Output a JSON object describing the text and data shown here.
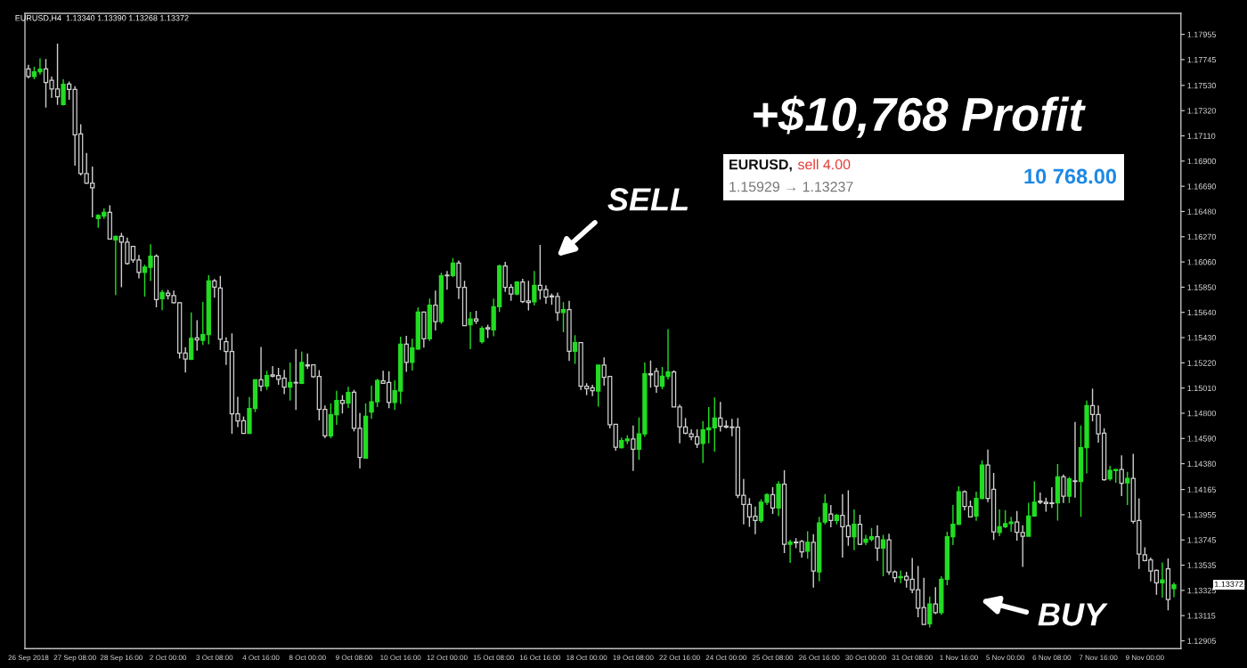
{
  "chart_data": {
    "type": "candlestick",
    "title": "EURUSD,H4  1.13340 1.13390 1.13268 1.13372",
    "categories": [
      "26 Sep 2018",
      null,
      null,
      null,
      null,
      null,
      null,
      null,
      "27 Sep 08:00",
      null,
      null,
      null,
      null,
      null,
      null,
      null,
      "28 Sep 16:00",
      null,
      null,
      null,
      null,
      null,
      null,
      null,
      "2 Oct 00:00",
      null,
      null,
      null,
      null,
      null,
      null,
      null,
      "3 Oct 08:00",
      null,
      null,
      null,
      null,
      null,
      null,
      null,
      "4 Oct 16:00",
      null,
      null,
      null,
      null,
      null,
      null,
      null,
      "8 Oct 00:00",
      null,
      null,
      null,
      null,
      null,
      null,
      null,
      "9 Oct 08:00",
      null,
      null,
      null,
      null,
      null,
      null,
      null,
      "10 Oct 16:00",
      null,
      null,
      null,
      null,
      null,
      null,
      null,
      "12 Oct 00:00",
      null,
      null,
      null,
      null,
      null,
      null,
      null,
      "15 Oct 08:00",
      null,
      null,
      null,
      null,
      null,
      null,
      null,
      "16 Oct 16:00",
      null,
      null,
      null,
      null,
      null,
      null,
      null,
      "18 Oct 00:00",
      null,
      null,
      null,
      null,
      null,
      null,
      null,
      "19 Oct 08:00",
      null,
      null,
      null,
      null,
      null,
      null,
      null,
      "22 Oct 16:00",
      null,
      null,
      null,
      null,
      null,
      null,
      null,
      "24 Oct 00:00",
      null,
      null,
      null,
      null,
      null,
      null,
      null,
      "25 Oct 08:00",
      null,
      null,
      null,
      null,
      null,
      null,
      null,
      "26 Oct 16:00",
      null,
      null,
      null,
      null,
      null,
      null,
      null,
      "30 Oct 00:00",
      null,
      null,
      null,
      null,
      null,
      null,
      null,
      "31 Oct 08:00",
      null,
      null,
      null,
      null,
      null,
      null,
      null,
      "1 Nov 16:00",
      null,
      null,
      null,
      null,
      null,
      null,
      null,
      "5 Nov 00:00",
      null,
      null,
      null,
      null,
      null,
      null,
      null,
      "6 Nov 08:00",
      null,
      null,
      null,
      null,
      null,
      null,
      null,
      "7 Nov 16:00",
      null,
      null,
      null,
      null,
      null,
      null,
      null,
      "9 Nov 00:00",
      null,
      null,
      null,
      null,
      null
    ],
    "ohlc": [
      [
        1.17668,
        1.17701,
        1.17588,
        1.17604
      ],
      [
        1.17604,
        1.17685,
        1.17581,
        1.17643
      ],
      [
        1.17643,
        1.17756,
        1.1762,
        1.17665
      ],
      [
        1.17668,
        1.17749,
        1.17345,
        1.17555
      ],
      [
        1.17572,
        1.17604,
        1.17426,
        1.17501
      ],
      [
        1.17501,
        1.17878,
        1.17368,
        1.17436
      ],
      [
        1.17371,
        1.17581,
        1.17362,
        1.17539
      ],
      [
        1.17542,
        1.17562,
        1.1741,
        1.17497
      ],
      [
        1.17497,
        1.17523,
        1.16861,
        1.17119
      ],
      [
        1.17126,
        1.17207,
        1.1678,
        1.16796
      ],
      [
        1.16796,
        1.16968,
        1.16709,
        1.16716
      ],
      [
        1.16716,
        1.16855,
        1.16431,
        1.16677
      ],
      [
        1.16422,
        1.16457,
        1.16344,
        1.16448
      ],
      [
        1.16441,
        1.16506,
        1.16418,
        1.16473
      ],
      [
        1.16473,
        1.16532,
        1.16247,
        1.1625
      ],
      [
        1.16244,
        1.1628,
        1.15785,
        1.16273
      ],
      [
        1.16273,
        1.16302,
        1.1585,
        1.16225
      ],
      [
        1.16225,
        1.16263,
        1.16037,
        1.16047
      ],
      [
        1.16189,
        1.16189,
        1.16053,
        1.16076
      ],
      [
        1.16076,
        1.16118,
        1.15924,
        1.15973
      ],
      [
        1.15973,
        1.16037,
        1.15772,
        1.16018
      ],
      [
        1.16015,
        1.16208,
        1.15902,
        1.16108
      ],
      [
        1.16108,
        1.16124,
        1.15682,
        1.15747
      ],
      [
        1.15753,
        1.15827,
        1.15659,
        1.15805
      ],
      [
        1.15801,
        1.15827,
        1.15747,
        1.15779
      ],
      [
        1.15779,
        1.15821,
        1.15714,
        1.15721
      ],
      [
        1.15721,
        1.15727,
        1.15256,
        1.15301
      ],
      [
        1.15301,
        1.15349,
        1.15139,
        1.15252
      ],
      [
        1.15249,
        1.1564,
        1.15243,
        1.15424
      ],
      [
        1.15427,
        1.15575,
        1.1532,
        1.15411
      ],
      [
        1.15407,
        1.15727,
        1.15369,
        1.15456
      ],
      [
        1.15456,
        1.1595,
        1.15375,
        1.15902
      ],
      [
        1.15902,
        1.15918,
        1.15763,
        1.1585
      ],
      [
        1.15843,
        1.15944,
        1.15327,
        1.15417
      ],
      [
        1.15396,
        1.15433,
        1.15203,
        1.15314
      ],
      [
        1.15314,
        1.15465,
        1.14629,
        1.14795
      ],
      [
        1.14795,
        1.14938,
        1.14684,
        1.14736
      ],
      [
        1.14738,
        1.14773,
        1.14629,
        1.14632
      ],
      [
        1.14632,
        1.14936,
        1.14629,
        1.1484
      ],
      [
        1.1484,
        1.15079,
        1.1481,
        1.15079
      ],
      [
        1.15079,
        1.15352,
        1.14983,
        1.15025
      ],
      [
        1.15025,
        1.15154,
        1.14995,
        1.15114
      ],
      [
        1.15119,
        1.15193,
        1.15099,
        1.15109
      ],
      [
        1.15114,
        1.15178,
        1.15037,
        1.15082
      ],
      [
        1.15092,
        1.15161,
        1.14959,
        1.15017
      ],
      [
        1.15017,
        1.15223,
        1.14906,
        1.15057
      ],
      [
        1.15057,
        1.15334,
        1.14827,
        1.15052
      ],
      [
        1.1505,
        1.15314,
        1.15042,
        1.15223
      ],
      [
        1.15203,
        1.15297,
        1.15168,
        1.15193
      ],
      [
        1.15203,
        1.15203,
        1.15094,
        1.15104
      ],
      [
        1.15107,
        1.15159,
        1.14741,
        1.14832
      ],
      [
        1.14832,
        1.14864,
        1.14592,
        1.14612
      ],
      [
        1.14612,
        1.14882,
        1.14592,
        1.14788
      ],
      [
        1.14788,
        1.14988,
        1.14704,
        1.14906
      ],
      [
        1.14906,
        1.14951,
        1.14798,
        1.14882
      ],
      [
        1.14884,
        1.1502,
        1.14842,
        1.14973
      ],
      [
        1.14976,
        1.14995,
        1.14649,
        1.14674
      ],
      [
        1.14674,
        1.14802,
        1.1434,
        1.14432
      ],
      [
        1.14427,
        1.14882,
        1.14427,
        1.14775
      ],
      [
        1.1481,
        1.1503,
        1.14753,
        1.14896
      ],
      [
        1.14896,
        1.15087,
        1.14852,
        1.15074
      ],
      [
        1.1507,
        1.15154,
        1.15045,
        1.1505
      ],
      [
        1.15057,
        1.15149,
        1.14842,
        1.14889
      ],
      [
        1.14889,
        1.15074,
        1.14827,
        1.14988
      ],
      [
        1.14985,
        1.15438,
        1.14877,
        1.15376
      ],
      [
        1.15376,
        1.15445,
        1.15144,
        1.15223
      ],
      [
        1.15223,
        1.15421,
        1.15156,
        1.15344
      ],
      [
        1.15334,
        1.1568,
        1.15329,
        1.15643
      ],
      [
        1.15643,
        1.15648,
        1.15347,
        1.15421
      ],
      [
        1.15421,
        1.15755,
        1.15401,
        1.157
      ],
      [
        1.157,
        1.15821,
        1.1549,
        1.15562
      ],
      [
        1.15562,
        1.1597,
        1.15544,
        1.15945
      ],
      [
        1.1595,
        1.15985,
        1.15829,
        1.15945
      ],
      [
        1.15947,
        1.16093,
        1.15933,
        1.16051
      ],
      [
        1.16051,
        1.16071,
        1.15752,
        1.15849
      ],
      [
        1.15849,
        1.15903,
        1.1553,
        1.1553
      ],
      [
        1.15537,
        1.15643,
        1.15334,
        1.15586
      ],
      [
        1.15586,
        1.15653,
        1.15544,
        1.15569
      ],
      [
        1.15396,
        1.15525,
        1.15381,
        1.15507
      ],
      [
        1.15512,
        1.15537,
        1.15426,
        1.15502
      ],
      [
        1.15495,
        1.15755,
        1.15441,
        1.15688
      ],
      [
        1.15688,
        1.16039,
        1.15643,
        1.16027
      ],
      [
        1.16027,
        1.16061,
        1.15811,
        1.15849
      ],
      [
        1.15849,
        1.15876,
        1.15737,
        1.15792
      ],
      [
        1.15792,
        1.159,
        1.15782,
        1.15893
      ],
      [
        1.15893,
        1.1592,
        1.15718,
        1.1573
      ],
      [
        1.15735,
        1.15903,
        1.15656,
        1.15722
      ],
      [
        1.15727,
        1.15985,
        1.15698,
        1.15866
      ],
      [
        1.15866,
        1.16202,
        1.15747,
        1.15826
      ],
      [
        1.15829,
        1.15866,
        1.15713,
        1.15767
      ],
      [
        1.15777,
        1.15797,
        1.15703,
        1.15769
      ],
      [
        1.15772,
        1.15804,
        1.15569,
        1.15638
      ],
      [
        1.15638,
        1.15725,
        1.15475,
        1.15663
      ],
      [
        1.15663,
        1.15737,
        1.15235,
        1.15317
      ],
      [
        1.15317,
        1.1545,
        1.15211,
        1.15389
      ],
      [
        1.15389,
        1.15391,
        1.14993,
        1.15025
      ],
      [
        1.15025,
        1.1505,
        1.14951,
        1.15005
      ],
      [
        1.15013,
        1.15037,
        1.14943,
        1.14988
      ],
      [
        1.14985,
        1.15201,
        1.14855,
        1.15201
      ],
      [
        1.15201,
        1.15265,
        1.1503,
        1.15099
      ],
      [
        1.15107,
        1.15107,
        1.14674,
        1.14704
      ],
      [
        1.14708,
        1.14708,
        1.14488,
        1.14518
      ],
      [
        1.14513,
        1.14597,
        1.14506,
        1.14572
      ],
      [
        1.1457,
        1.14617,
        1.14543,
        1.14585
      ],
      [
        1.14585,
        1.14698,
        1.1432,
        1.14501
      ],
      [
        1.14501,
        1.14765,
        1.14412,
        1.14629
      ],
      [
        1.14629,
        1.15223,
        1.14604,
        1.15129
      ],
      [
        1.15129,
        1.1524,
        1.15013,
        1.15119
      ],
      [
        1.15149,
        1.15178,
        1.14971,
        1.15025
      ],
      [
        1.15025,
        1.15186,
        1.15,
        1.15109
      ],
      [
        1.15107,
        1.155,
        1.15082,
        1.15144
      ],
      [
        1.15144,
        1.15158,
        1.14852,
        1.14852
      ],
      [
        1.14852,
        1.14872,
        1.1455,
        1.14686
      ],
      [
        1.14686,
        1.1476,
        1.14624,
        1.14634
      ],
      [
        1.14629,
        1.14666,
        1.14575,
        1.14605
      ],
      [
        1.14605,
        1.14666,
        1.14511,
        1.14543
      ],
      [
        1.14548,
        1.14735,
        1.14387,
        1.14661
      ],
      [
        1.14661,
        1.14852,
        1.1455,
        1.14679
      ],
      [
        1.14679,
        1.14931,
        1.14481,
        1.1476
      ],
      [
        1.1476,
        1.14894,
        1.14647,
        1.14691
      ],
      [
        1.14694,
        1.14741,
        1.14674,
        1.14684
      ],
      [
        1.14686,
        1.14753,
        1.14609,
        1.14681
      ],
      [
        1.14684,
        1.1476,
        1.14093,
        1.14117
      ],
      [
        1.14117,
        1.14253,
        1.13875,
        1.14041
      ],
      [
        1.14041,
        1.14093,
        1.13855,
        1.13937
      ],
      [
        1.13942,
        1.14023,
        1.13793,
        1.13907
      ],
      [
        1.13905,
        1.14085,
        1.13887,
        1.1406
      ],
      [
        1.1406,
        1.14135,
        1.14036,
        1.14122
      ],
      [
        1.14122,
        1.14184,
        1.13962,
        1.14011
      ],
      [
        1.14011,
        1.14234,
        1.13944,
        1.14209
      ],
      [
        1.14209,
        1.14325,
        1.13635,
        1.13709
      ],
      [
        1.13709,
        1.13746,
        1.13554,
        1.13727
      ],
      [
        1.13727,
        1.13759,
        1.13677,
        1.13722
      ],
      [
        1.13732,
        1.13744,
        1.13598,
        1.13645
      ],
      [
        1.13652,
        1.13818,
        1.1359,
        1.13726
      ],
      [
        1.13726,
        1.13793,
        1.13348,
        1.13486
      ],
      [
        1.13479,
        1.13937,
        1.134,
        1.13887
      ],
      [
        1.13895,
        1.14127,
        1.13875,
        1.14048
      ],
      [
        1.13961,
        1.14036,
        1.1385,
        1.13907
      ],
      [
        1.13907,
        1.13961,
        1.13875,
        1.13949
      ],
      [
        1.13949,
        1.14127,
        1.13598,
        1.13855
      ],
      [
        1.13862,
        1.14159,
        1.13697,
        1.13771
      ],
      [
        1.13771,
        1.13998,
        1.1366,
        1.13875
      ],
      [
        1.13875,
        1.13954,
        1.13702,
        1.13709
      ],
      [
        1.13726,
        1.13788,
        1.13702,
        1.13751
      ],
      [
        1.13749,
        1.13845,
        1.13734,
        1.13771
      ],
      [
        1.13771,
        1.13867,
        1.13571,
        1.13677
      ],
      [
        1.13677,
        1.13788,
        1.13442,
        1.13746
      ],
      [
        1.13746,
        1.13796,
        1.13454,
        1.13479
      ],
      [
        1.13479,
        1.13491,
        1.13393,
        1.1343
      ],
      [
        1.1343,
        1.13491,
        1.13385,
        1.1344
      ],
      [
        1.13442,
        1.13479,
        1.13348,
        1.13412
      ],
      [
        1.13417,
        1.13595,
        1.13301,
        1.13331
      ],
      [
        1.13331,
        1.13528,
        1.13101,
        1.13177
      ],
      [
        1.13182,
        1.1343,
        1.13041,
        1.13041
      ],
      [
        1.13046,
        1.13274,
        1.13017,
        1.13212
      ],
      [
        1.13212,
        1.13351,
        1.13128,
        1.1314
      ],
      [
        1.1314,
        1.13442,
        1.13121,
        1.13417
      ],
      [
        1.13417,
        1.13813,
        1.13368,
        1.13771
      ],
      [
        1.13771,
        1.14036,
        1.13702,
        1.13875
      ],
      [
        1.13875,
        1.14191,
        1.1387,
        1.14147
      ],
      [
        1.14147,
        1.14159,
        1.13991,
        1.14023
      ],
      [
        1.14023,
        1.14073,
        1.13932,
        1.13937
      ],
      [
        1.13944,
        1.14147,
        1.13904,
        1.1409
      ],
      [
        1.1409,
        1.14407,
        1.14085,
        1.14369
      ],
      [
        1.14369,
        1.14498,
        1.1406,
        1.1409
      ],
      [
        1.14167,
        1.14303,
        1.13744,
        1.13813
      ],
      [
        1.13807,
        1.13998,
        1.13776,
        1.13855
      ],
      [
        1.13855,
        1.13993,
        1.13843,
        1.13882
      ],
      [
        1.13882,
        1.13937,
        1.13813,
        1.13895
      ],
      [
        1.13895,
        1.13986,
        1.13739,
        1.13808
      ],
      [
        1.13807,
        1.13867,
        1.13521,
        1.13776
      ],
      [
        1.13776,
        1.14055,
        1.13776,
        1.13944
      ],
      [
        1.13944,
        1.14233,
        1.13937,
        1.1406
      ],
      [
        1.14068,
        1.14139,
        1.14043,
        1.1406
      ],
      [
        1.1406,
        1.14097,
        1.13981,
        1.14048
      ],
      [
        1.14053,
        1.14184,
        1.14011,
        1.14048
      ],
      [
        1.14053,
        1.14377,
        1.13907,
        1.1427
      ],
      [
        1.1427,
        1.1429,
        1.14053,
        1.1411
      ],
      [
        1.1411,
        1.1427,
        1.14053,
        1.14253
      ],
      [
        1.14238,
        1.14728,
        1.14097,
        1.14231
      ],
      [
        1.14231,
        1.14698,
        1.13937,
        1.14513
      ],
      [
        1.14513,
        1.14906,
        1.143,
        1.14864
      ],
      [
        1.14864,
        1.15005,
        1.14733,
        1.1479
      ],
      [
        1.1479,
        1.14864,
        1.14555,
        1.14629
      ],
      [
        1.14634,
        1.14674,
        1.14238,
        1.14246
      ],
      [
        1.14253,
        1.14362,
        1.14238,
        1.14325
      ],
      [
        1.14322,
        1.14337,
        1.14221,
        1.14332
      ],
      [
        1.14332,
        1.14449,
        1.1411,
        1.14216
      ],
      [
        1.14221,
        1.14313,
        1.14036,
        1.14258
      ],
      [
        1.14258,
        1.14463,
        1.13882,
        1.139
      ],
      [
        1.13907,
        1.14092,
        1.13504,
        1.13627
      ],
      [
        1.13622,
        1.13684,
        1.13566,
        1.13573
      ],
      [
        1.13578,
        1.13598,
        1.134,
        1.13487
      ],
      [
        1.13491,
        1.13499,
        1.13289,
        1.13388
      ],
      [
        1.13388,
        1.13558,
        1.13264,
        1.13412
      ],
      [
        1.13504,
        1.13591,
        1.13158,
        1.13249
      ],
      [
        1.1334,
        1.1339,
        1.13268,
        1.13372
      ]
    ],
    "colors": [
      "#d0d0d0",
      "#22dd22",
      "#22dd22",
      "#d0d0d0",
      "#d0d0d0",
      "#d0d0d0",
      "#22dd22",
      "#d0d0d0",
      "#d0d0d0",
      "#d0d0d0",
      "#d0d0d0",
      "#d0d0d0",
      "#22dd22",
      "#22dd22",
      "#d0d0d0",
      "#22dd22",
      "#d0d0d0",
      "#d0d0d0",
      "#d0d0d0",
      "#d0d0d0",
      "#22dd22",
      "#22dd22",
      "#d0d0d0",
      "#22dd22",
      "#d0d0d0",
      "#d0d0d0",
      "#d0d0d0",
      "#d0d0d0",
      "#22dd22",
      "#d0d0d0",
      "#22dd22",
      "#22dd22",
      "#d0d0d0",
      "#d0d0d0",
      "#d0d0d0",
      "#d0d0d0",
      "#d0d0d0",
      "#d0d0d0",
      "#22dd22",
      "#22dd22",
      "#d0d0d0",
      "#22dd22",
      "#d0d0d0",
      "#d0d0d0",
      "#d0d0d0",
      "#22dd22",
      "#d0d0d0",
      "#22dd22",
      "#d0d0d0",
      "#d0d0d0",
      "#d0d0d0",
      "#d0d0d0",
      "#22dd22",
      "#22dd22",
      "#d0d0d0",
      "#22dd22",
      "#d0d0d0",
      "#d0d0d0",
      "#22dd22",
      "#22dd22",
      "#22dd22",
      "#d0d0d0",
      "#d0d0d0",
      "#22dd22",
      "#22dd22",
      "#d0d0d0",
      "#22dd22",
      "#22dd22",
      "#d0d0d0",
      "#22dd22",
      "#d0d0d0",
      "#22dd22",
      "#d0d0d0",
      "#22dd22",
      "#d0d0d0",
      "#d0d0d0",
      "#22dd22",
      "#d0d0d0",
      "#22dd22",
      "#d0d0d0",
      "#22dd22",
      "#22dd22",
      "#d0d0d0",
      "#d0d0d0",
      "#22dd22",
      "#d0d0d0",
      "#d0d0d0",
      "#22dd22",
      "#d0d0d0",
      "#d0d0d0",
      "#d0d0d0",
      "#d0d0d0",
      "#22dd22",
      "#d0d0d0",
      "#22dd22",
      "#d0d0d0",
      "#d0d0d0",
      "#d0d0d0",
      "#22dd22",
      "#d0d0d0",
      "#d0d0d0",
      "#d0d0d0",
      "#22dd22",
      "#22dd22",
      "#d0d0d0",
      "#22dd22",
      "#22dd22",
      "#d0d0d0",
      "#d0d0d0",
      "#22dd22",
      "#22dd22",
      "#d0d0d0",
      "#d0d0d0",
      "#d0d0d0",
      "#d0d0d0",
      "#d0d0d0",
      "#22dd22",
      "#22dd22",
      "#22dd22",
      "#d0d0d0",
      "#d0d0d0",
      "#d0d0d0",
      "#d0d0d0",
      "#d0d0d0",
      "#d0d0d0",
      "#d0d0d0",
      "#22dd22",
      "#22dd22",
      "#d0d0d0",
      "#22dd22",
      "#d0d0d0",
      "#22dd22",
      "#d0d0d0",
      "#d0d0d0",
      "#22dd22",
      "#d0d0d0",
      "#22dd22",
      "#22dd22",
      "#d0d0d0",
      "#22dd22",
      "#d0d0d0",
      "#d0d0d0",
      "#22dd22",
      "#d0d0d0",
      "#22dd22",
      "#22dd22",
      "#d0d0d0",
      "#22dd22",
      "#d0d0d0",
      "#d0d0d0",
      "#22dd22",
      "#d0d0d0",
      "#d0d0d0",
      "#d0d0d0",
      "#d0d0d0",
      "#22dd22",
      "#d0d0d0",
      "#22dd22",
      "#22dd22",
      "#22dd22",
      "#22dd22",
      "#d0d0d0",
      "#d0d0d0",
      "#22dd22",
      "#22dd22",
      "#d0d0d0",
      "#d0d0d0",
      "#22dd22",
      "#22dd22",
      "#22dd22",
      "#d0d0d0",
      "#d0d0d0",
      "#22dd22",
      "#22dd22",
      "#d0d0d0",
      "#d0d0d0",
      "#d0d0d0",
      "#22dd22",
      "#d0d0d0",
      "#22dd22",
      "#d0d0d0",
      "#22dd22",
      "#22dd22",
      "#d0d0d0",
      "#d0d0d0",
      "#d0d0d0",
      "#22dd22",
      "#22dd22",
      "#d0d0d0",
      "#22dd22",
      "#d0d0d0",
      "#d0d0d0",
      "#d0d0d0",
      "#d0d0d0",
      "#d0d0d0",
      "#22dd22",
      "#d0d0d0",
      "#22dd22"
    ],
    "ylim": [
      1.1284,
      1.1813
    ],
    "yticks": [
      1.17955,
      1.17745,
      {
        "value": 1.1753,
        "label": "1.17530"
      },
      {
        "value": 1.1732,
        "label": "1.17320"
      },
      {
        "value": 1.1711,
        "label": "1.17110"
      },
      {
        "value": 1.169,
        "label": "1.16900"
      },
      {
        "value": 1.1669,
        "label": "1.16690"
      },
      {
        "value": 1.1648,
        "label": "1.16480"
      },
      {
        "value": 1.1627,
        "label": "1.16270"
      },
      {
        "value": 1.1606,
        "label": "1.16060"
      },
      {
        "value": 1.1585,
        "label": "1.15850"
      },
      {
        "value": 1.1564,
        "label": "1.15640"
      },
      {
        "value": 1.1543,
        "label": "1.15430"
      },
      {
        "value": 1.1522,
        "label": "1.15220"
      },
      {
        "value": 1.1501,
        "label": "1.15010"
      },
      {
        "value": 1.148,
        "label": "1.14800"
      },
      {
        "value": 1.1459,
        "label": "1.14590"
      },
      {
        "value": 1.1438,
        "label": "1.14380"
      },
      1.14165,
      1.13955,
      1.13745,
      1.13535,
      1.13325,
      1.13115,
      1.12905
    ],
    "annotations": [
      "+$10,768 Profit",
      "EURUSD,",
      "sell 4.00",
      "1.15929 → 1.13237",
      "10 768.00",
      "SELL",
      "BUY",
      "1.13372"
    ]
  }
}
